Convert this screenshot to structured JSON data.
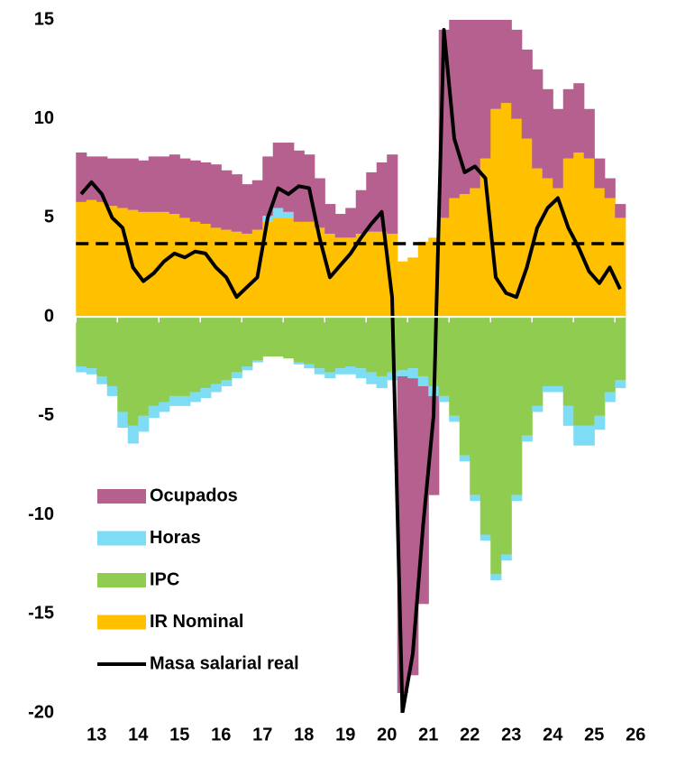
{
  "chart_data": {
    "type": "bar",
    "stacked": true,
    "categories": [
      "13",
      null,
      null,
      null,
      "14",
      null,
      null,
      null,
      "15",
      null,
      null,
      null,
      "16",
      null,
      null,
      null,
      "17",
      null,
      null,
      null,
      "18",
      null,
      null,
      null,
      "19",
      null,
      null,
      null,
      "20",
      null,
      null,
      null,
      "21",
      null,
      null,
      null,
      "22",
      null,
      null,
      null,
      "23",
      null,
      null,
      null,
      "24",
      null,
      null,
      null,
      "25",
      null,
      null,
      null,
      "26"
    ],
    "series": [
      {
        "name": "Ocupados",
        "color": "#b5608f",
        "values": [
          2.5,
          2.2,
          2.3,
          2.4,
          2.5,
          2.6,
          2.6,
          2.8,
          2.8,
          3,
          3,
          3.1,
          3.1,
          3.2,
          3,
          2.9,
          2.5,
          2.5,
          3,
          3.3,
          3.5,
          3.6,
          3.4,
          2.5,
          1.5,
          1.2,
          1.5,
          2.2,
          3,
          3.5,
          4,
          -16,
          -15,
          -11,
          -5,
          9.5,
          9,
          9.5,
          8.5,
          7.5,
          5,
          4.5,
          4.5,
          4.5,
          5,
          4.5,
          4,
          3.5,
          3.5,
          2.5,
          1.5,
          1,
          0.7
        ]
      },
      {
        "name": "Horas",
        "color": "#7fdcf5",
        "values": [
          -0.3,
          -0.3,
          -0.4,
          -0.5,
          -0.8,
          -0.9,
          -0.8,
          -0.6,
          -0.5,
          -0.5,
          -0.5,
          -0.5,
          -0.5,
          -0.4,
          -0.3,
          -0.3,
          -0.2,
          -0.1,
          0.3,
          0.5,
          0.3,
          -0.1,
          -0.2,
          -0.3,
          -0.3,
          -0.3,
          -0.4,
          -0.5,
          -0.6,
          -0.6,
          -0.4,
          -0.3,
          -0.5,
          -0.5,
          -0.5,
          -0.3,
          -0.3,
          -0.3,
          -0.3,
          -0.3,
          -0.3,
          -0.3,
          -0.3,
          -0.3,
          -0.3,
          -0.3,
          -0.3,
          -1,
          -1,
          -1,
          -0.7,
          -0.5,
          -0.4
        ]
      },
      {
        "name": "IPC",
        "color": "#8fcc4f",
        "values": [
          -2.5,
          -2.6,
          -3,
          -3.5,
          -4.8,
          -5.5,
          -5,
          -4.5,
          -4.3,
          -4,
          -4,
          -3.8,
          -3.6,
          -3.4,
          -3.2,
          -2.8,
          -2.5,
          -2.2,
          -2,
          -2,
          -2.1,
          -2.3,
          -2.4,
          -2.6,
          -2.8,
          -2.6,
          -2.5,
          -2.6,
          -2.8,
          -3,
          -2.8,
          -2.7,
          -2.6,
          -3,
          -3.5,
          -4,
          -5,
          -7,
          -9,
          -11,
          -13,
          -12,
          -9,
          -6,
          -4.5,
          -3.5,
          -3.5,
          -4.5,
          -5.5,
          -5.5,
          -5,
          -3.8,
          -3.2
        ]
      },
      {
        "name": "IR Nominal",
        "color": "#ffc000",
        "values": [
          5.8,
          5.9,
          5.8,
          5.6,
          5.5,
          5.4,
          5.3,
          5.3,
          5.3,
          5.2,
          5,
          4.8,
          4.7,
          4.5,
          4.4,
          4.3,
          4.2,
          4.4,
          4.8,
          5,
          5,
          4.8,
          4.8,
          4.5,
          4.2,
          4,
          4,
          4.2,
          4.3,
          4.3,
          4.2,
          2.8,
          3,
          3.8,
          4,
          5,
          6,
          6.2,
          6.5,
          8,
          10.5,
          10.8,
          10,
          9,
          7.5,
          7,
          6.5,
          8,
          8.3,
          8,
          6.5,
          6,
          5
        ]
      },
      {
        "name": "Masa salarial real",
        "color": "#000000",
        "type": "line",
        "values": [
          6.2,
          6.8,
          6.2,
          5,
          4.5,
          2.5,
          1.8,
          2.2,
          2.8,
          3.2,
          3,
          3.3,
          3.2,
          2.5,
          2,
          1,
          1.5,
          2,
          5,
          6.5,
          6.2,
          6.6,
          6.5,
          4,
          2,
          2.6,
          3.2,
          4,
          4.7,
          5.3,
          1,
          -20,
          -17,
          -10.5,
          -5,
          14.5,
          9,
          7.3,
          7.6,
          7,
          2,
          1.2,
          1,
          2.5,
          4.5,
          5.5,
          6,
          4.5,
          3.5,
          2.3,
          1.7,
          2.5,
          1.4
        ]
      }
    ],
    "hline": 3.7,
    "ylim": [
      -20,
      15
    ],
    "yticks": [
      -20,
      -15,
      -10,
      -5,
      0,
      5,
      10,
      15
    ]
  }
}
